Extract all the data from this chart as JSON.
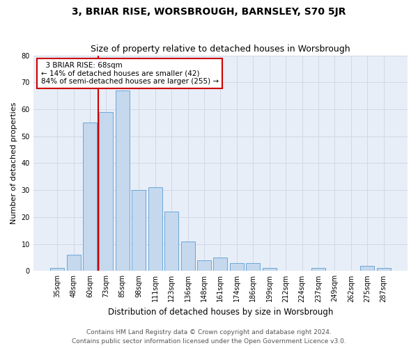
{
  "title_line1": "3, BRIAR RISE, WORSBROUGH, BARNSLEY, S70 5JR",
  "title_line2": "Size of property relative to detached houses in Worsbrough",
  "xlabel": "Distribution of detached houses by size in Worsbrough",
  "ylabel": "Number of detached properties",
  "categories": [
    "35sqm",
    "48sqm",
    "60sqm",
    "73sqm",
    "85sqm",
    "98sqm",
    "111sqm",
    "123sqm",
    "136sqm",
    "148sqm",
    "161sqm",
    "174sqm",
    "186sqm",
    "199sqm",
    "212sqm",
    "224sqm",
    "237sqm",
    "249sqm",
    "262sqm",
    "275sqm",
    "287sqm"
  ],
  "values": [
    1,
    6,
    55,
    59,
    67,
    30,
    31,
    22,
    11,
    4,
    5,
    3,
    3,
    1,
    0,
    0,
    1,
    0,
    0,
    2,
    1
  ],
  "bar_color": "#c5d8ed",
  "bar_edge_color": "#5a9fd4",
  "annotation_text": "  3 BRIAR RISE: 68sqm  \n← 14% of detached houses are smaller (42)\n84% of semi-detached houses are larger (255) →",
  "annotation_box_color": "#ffffff",
  "annotation_box_edge": "#cc0000",
  "ylim": [
    0,
    80
  ],
  "yticks": [
    0,
    10,
    20,
    30,
    40,
    50,
    60,
    70,
    80
  ],
  "grid_color": "#d0d8e8",
  "background_color": "#e8eef7",
  "red_line_color": "#cc0000",
  "footer_line1": "Contains HM Land Registry data © Crown copyright and database right 2024.",
  "footer_line2": "Contains public sector information licensed under the Open Government Licence v3.0.",
  "title1_fontsize": 10,
  "title2_fontsize": 9,
  "xlabel_fontsize": 8.5,
  "ylabel_fontsize": 8,
  "tick_fontsize": 7,
  "annot_fontsize": 7.5,
  "footer_fontsize": 6.5
}
